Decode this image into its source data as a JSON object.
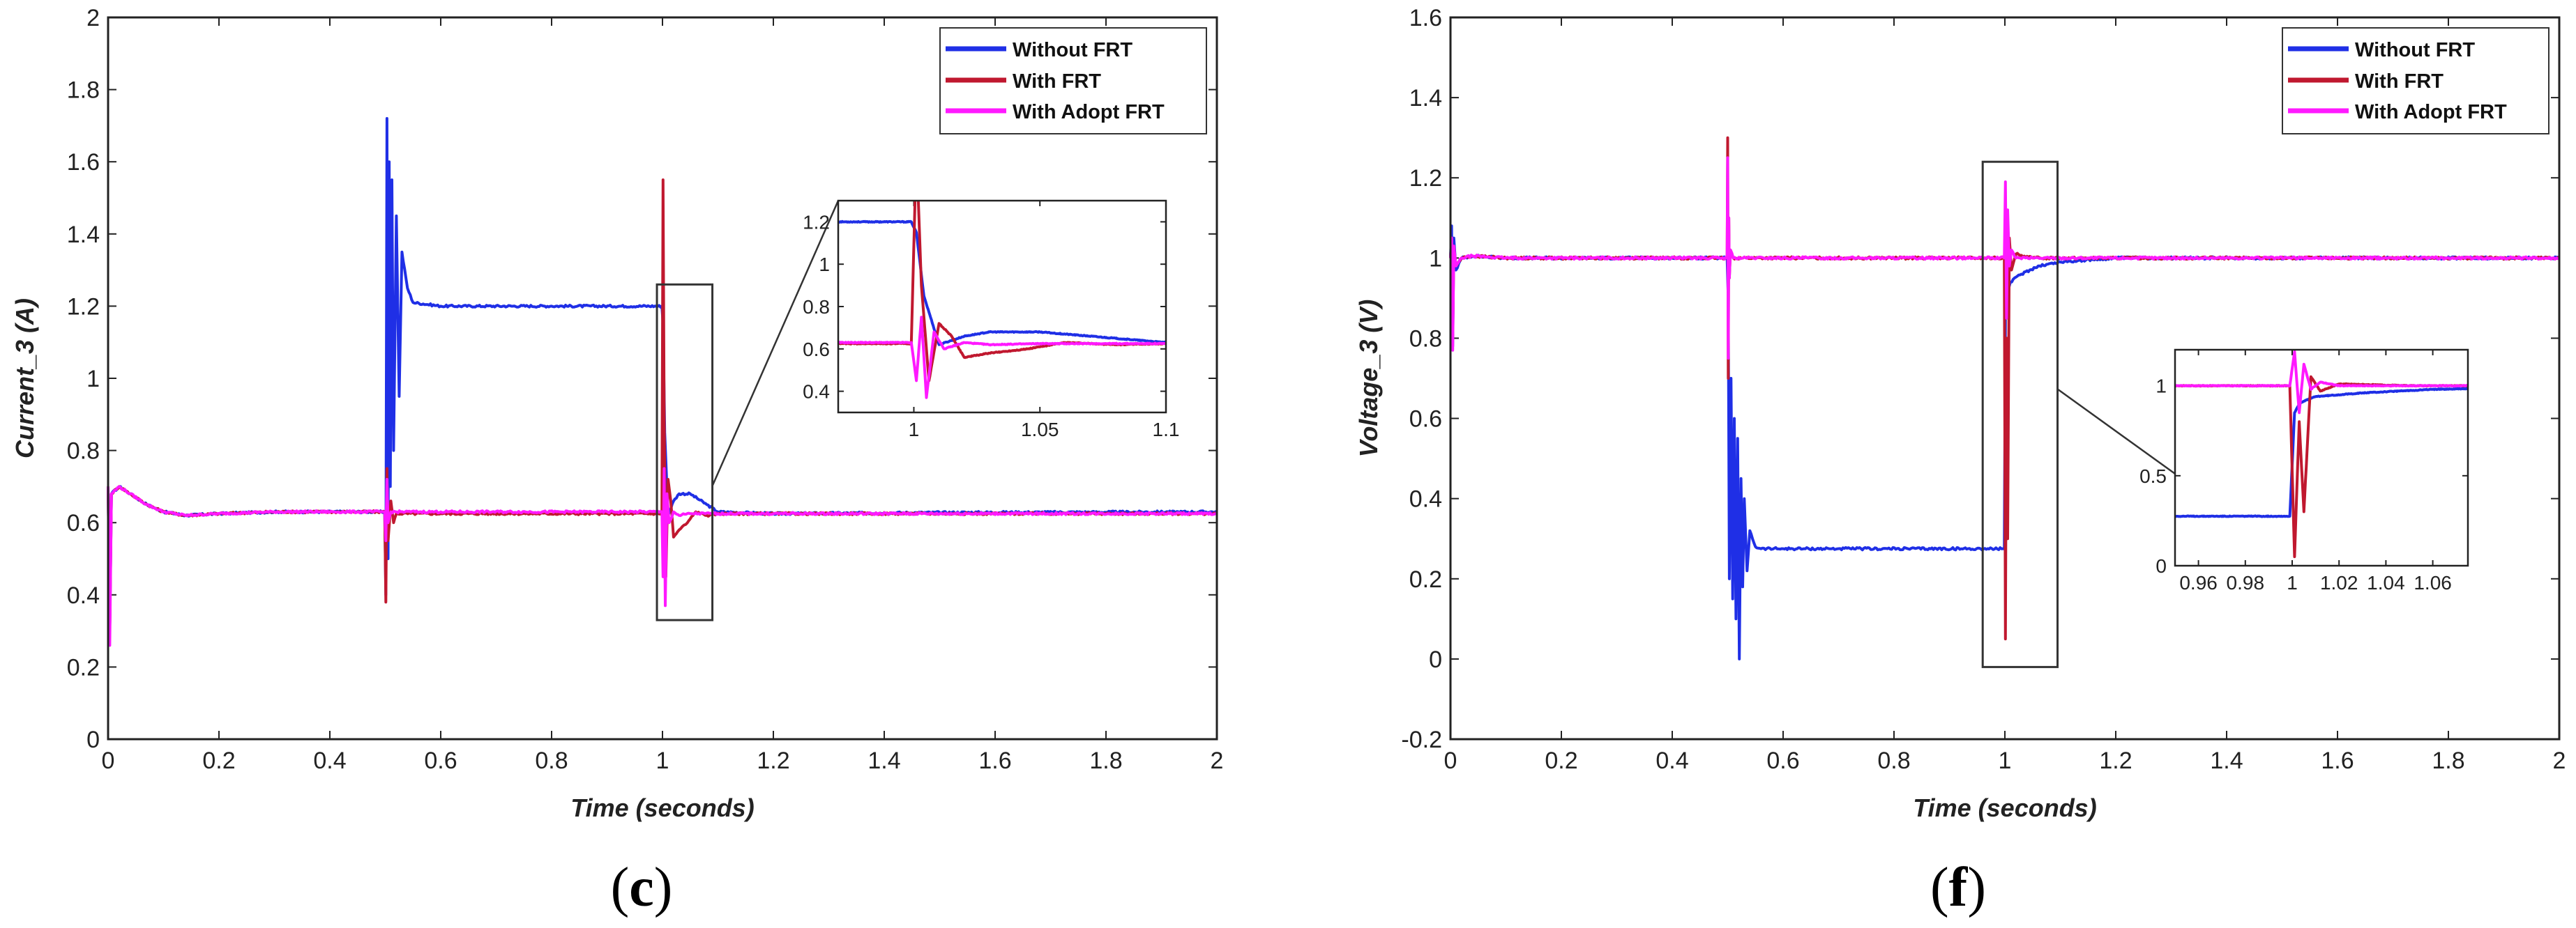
{
  "colors": {
    "without": "#1f2fe6",
    "with": "#c0182f",
    "adopt": "#ff19ff",
    "axis": "#222222",
    "zoombox": "#333333"
  },
  "chart_data": [
    {
      "type": "line",
      "ylabel": "Current_3 (A)",
      "xlabel": "Time (seconds)",
      "xlim": [
        0,
        2
      ],
      "ylim": [
        0,
        2
      ],
      "xticks": [
        "0",
        "0.2",
        "0.4",
        "0.6",
        "0.8",
        "1",
        "1.2",
        "1.4",
        "1.6",
        "1.8",
        "2"
      ],
      "yticks": [
        "0",
        "0.2",
        "0.4",
        "0.6",
        "0.8",
        "1",
        "1.2",
        "1.4",
        "1.6",
        "1.8",
        "2"
      ],
      "legend": [
        "Without FRT",
        "With FRT",
        "With Adopt FRT"
      ],
      "caption_open": "(",
      "caption_letter": "c",
      "caption_close": ")",
      "series": [
        {
          "name": "Without FRT",
          "x": [
            0,
            0.003,
            0.006,
            0.02,
            0.04,
            0.07,
            0.1,
            0.14,
            0.2,
            0.3,
            0.499,
            0.501,
            0.503,
            0.505,
            0.507,
            0.509,
            0.512,
            0.515,
            0.52,
            0.525,
            0.53,
            0.54,
            0.55,
            0.6,
            0.8,
            0.999,
            1.001,
            1.004,
            1.01,
            1.02,
            1.03,
            1.05,
            1.08,
            1.1,
            1.2,
            1.5,
            2
          ],
          "y": [
            0.7,
            0.3,
            0.68,
            0.7,
            0.68,
            0.65,
            0.63,
            0.62,
            0.625,
            0.63,
            0.63,
            0.4,
            1.72,
            0.5,
            1.6,
            0.7,
            1.55,
            0.8,
            1.45,
            0.95,
            1.35,
            1.25,
            1.21,
            1.2,
            1.2,
            1.2,
            1.15,
            0.85,
            0.62,
            0.66,
            0.68,
            0.68,
            0.65,
            0.63,
            0.625,
            0.628,
            0.63
          ]
        },
        {
          "name": "With FRT",
          "x": [
            0,
            0.003,
            0.006,
            0.02,
            0.04,
            0.07,
            0.1,
            0.14,
            0.2,
            0.3,
            0.499,
            0.501,
            0.503,
            0.505,
            0.51,
            0.515,
            0.52,
            0.6,
            0.999,
            1.001,
            1.003,
            1.006,
            1.01,
            1.015,
            1.02,
            1.03,
            1.045,
            1.06,
            1.08,
            1.1,
            1.2,
            2
          ],
          "y": [
            0.7,
            0.3,
            0.68,
            0.7,
            0.68,
            0.65,
            0.63,
            0.62,
            0.625,
            0.63,
            0.63,
            0.38,
            0.75,
            0.55,
            0.66,
            0.6,
            0.625,
            0.625,
            0.625,
            1.55,
            0.9,
            0.45,
            0.72,
            0.66,
            0.56,
            0.58,
            0.6,
            0.63,
            0.62,
            0.625,
            0.625,
            0.625
          ]
        },
        {
          "name": "With Adopt FRT",
          "x": [
            0,
            0.003,
            0.006,
            0.02,
            0.04,
            0.07,
            0.1,
            0.14,
            0.2,
            0.3,
            0.499,
            0.501,
            0.503,
            0.505,
            0.51,
            0.6,
            0.999,
            1.001,
            1.003,
            1.005,
            1.008,
            1.012,
            1.02,
            1.03,
            1.05,
            1.1,
            1.2,
            2
          ],
          "y": [
            0.7,
            0.26,
            0.68,
            0.7,
            0.68,
            0.65,
            0.63,
            0.62,
            0.625,
            0.63,
            0.63,
            0.55,
            0.72,
            0.6,
            0.63,
            0.63,
            0.63,
            0.45,
            0.75,
            0.37,
            0.68,
            0.6,
            0.63,
            0.62,
            0.625,
            0.625,
            0.625,
            0.625
          ]
        }
      ],
      "inset": {
        "xlim": [
          0.97,
          1.1
        ],
        "ylim": [
          0.3,
          1.3
        ],
        "xticks": [
          "1",
          "1.05",
          "1.1"
        ],
        "yticks": [
          "0.4",
          "0.6",
          "0.8",
          "1",
          "1.2"
        ],
        "zoom_region": {
          "x": [
            0.99,
            1.09
          ],
          "y": [
            0.33,
            1.26
          ]
        }
      }
    },
    {
      "type": "line",
      "ylabel": "Voltage_3 (V)",
      "xlabel": "Time (seconds)",
      "xlim": [
        0,
        2
      ],
      "ylim": [
        -0.2,
        1.6
      ],
      "xticks": [
        "0",
        "0.2",
        "0.4",
        "0.6",
        "0.8",
        "1",
        "1.2",
        "1.4",
        "1.6",
        "1.8",
        "2"
      ],
      "yticks": [
        "-0.2",
        "0",
        "0.2",
        "0.4",
        "0.6",
        "0.8",
        "1",
        "1.2",
        "1.4",
        "1.6"
      ],
      "legend": [
        "Without FRT",
        "With FRT",
        "With Adopt FRT"
      ],
      "caption_open": "(",
      "caption_letter": "f",
      "caption_close": ")",
      "series": [
        {
          "name": "Without FRT",
          "x": [
            0,
            0.002,
            0.004,
            0.006,
            0.01,
            0.02,
            0.04,
            0.1,
            0.499,
            0.501,
            0.503,
            0.506,
            0.509,
            0.512,
            0.515,
            0.518,
            0.521,
            0.524,
            0.527,
            0.53,
            0.535,
            0.54,
            0.55,
            0.56,
            0.6,
            0.999,
            1.001,
            1.003,
            1.006,
            1.01,
            1.03,
            1.06,
            1.1,
            1.2,
            2
          ],
          "y": [
            1.0,
            1.08,
            0.78,
            1.05,
            0.97,
            1.0,
            1.005,
            1.0,
            1.0,
            0.9,
            0.2,
            0.7,
            0.15,
            0.6,
            0.1,
            0.55,
            0.0,
            0.45,
            0.18,
            0.4,
            0.22,
            0.32,
            0.28,
            0.275,
            0.275,
            0.275,
            0.85,
            0.9,
            0.92,
            0.94,
            0.96,
            0.98,
            0.99,
            1.0,
            1.0
          ]
        },
        {
          "name": "With FRT",
          "x": [
            0,
            0.002,
            0.004,
            0.006,
            0.01,
            0.02,
            0.04,
            0.1,
            0.499,
            0.5,
            0.501,
            0.502,
            0.503,
            0.505,
            0.51,
            0.999,
            1.001,
            1.003,
            1.005,
            1.008,
            1.012,
            1.02,
            1.05,
            1.1,
            2
          ],
          "y": [
            1.0,
            1.05,
            0.8,
            1.03,
            0.98,
            1.0,
            1.005,
            1.0,
            1.0,
            1.3,
            0.7,
            1.1,
            0.95,
            1.02,
            1.0,
            1.0,
            0.05,
            0.8,
            0.3,
            1.05,
            0.97,
            1.01,
            1.0,
            1.0,
            1.0
          ]
        },
        {
          "name": "With Adopt FRT",
          "x": [
            0,
            0.002,
            0.004,
            0.006,
            0.01,
            0.02,
            0.04,
            0.1,
            0.499,
            0.5,
            0.501,
            0.502,
            0.503,
            0.505,
            0.51,
            0.999,
            1.001,
            1.003,
            1.005,
            1.008,
            1.012,
            1.02,
            1.05,
            1.1,
            2
          ],
          "y": [
            1.0,
            1.05,
            0.77,
            1.03,
            0.98,
            1.0,
            1.005,
            1.0,
            1.0,
            1.25,
            0.75,
            1.1,
            0.95,
            1.02,
            1.0,
            1.0,
            1.19,
            0.85,
            1.12,
            0.98,
            1.02,
            1.0,
            1.0,
            1.0,
            1.0
          ]
        }
      ],
      "inset": {
        "xlim": [
          0.95,
          1.075
        ],
        "ylim": [
          0,
          1.2
        ],
        "xticks": [
          "0.96",
          "0.98",
          "1",
          "1.02",
          "1.04",
          "1.06"
        ],
        "yticks": [
          "0",
          "0.5",
          "1"
        ],
        "zoom_region": {
          "x": [
            0.96,
            1.095
          ],
          "y": [
            -0.02,
            1.24
          ]
        }
      }
    }
  ]
}
